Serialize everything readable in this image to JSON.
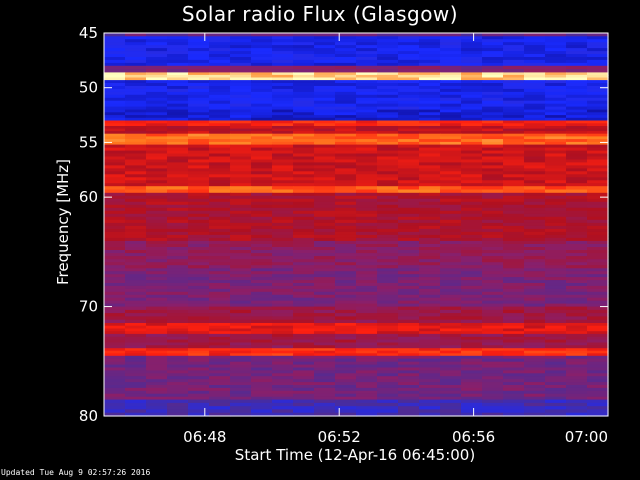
{
  "chart_data": {
    "type": "heatmap",
    "title": "Solar radio Flux (Glasgow)",
    "ylabel": "Frequency [MHz]",
    "xlabel": "Start Time (12-Apr-16 06:45:00)",
    "y_ticks": [
      "45",
      "50",
      "55",
      "60",
      "70",
      "80"
    ],
    "x_ticks": [
      "06:48",
      "06:52",
      "06:56",
      "07:00"
    ],
    "ylim": [
      45,
      80
    ],
    "xlim_minutes": [
      0,
      15
    ],
    "colormap": [
      "#1010a0",
      "#1a2bff",
      "#4a2c9a",
      "#8a1f6a",
      "#b01020",
      "#ff2010",
      "#ff8020",
      "#ffffc0"
    ],
    "bands": [
      {
        "from": 45,
        "to": 45.3,
        "level": 0.35
      },
      {
        "from": 45.3,
        "to": 48.0,
        "level": 0.12
      },
      {
        "from": 48.0,
        "to": 48.6,
        "level": 0.4
      },
      {
        "from": 48.6,
        "to": 49.3,
        "level": 0.95
      },
      {
        "from": 49.3,
        "to": 52.0,
        "level": 0.12
      },
      {
        "from": 52.0,
        "to": 53.0,
        "level": 0.08
      },
      {
        "from": 53.0,
        "to": 53.5,
        "level": 0.7
      },
      {
        "from": 53.5,
        "to": 54.2,
        "level": 0.6
      },
      {
        "from": 54.2,
        "to": 55.2,
        "level": 0.82
      },
      {
        "from": 55.2,
        "to": 59.0,
        "level": 0.62
      },
      {
        "from": 59.0,
        "to": 59.6,
        "level": 0.8
      },
      {
        "from": 59.6,
        "to": 64.0,
        "level": 0.55
      },
      {
        "from": 64.0,
        "to": 66.5,
        "level": 0.45
      },
      {
        "from": 66.5,
        "to": 70.0,
        "level": 0.4
      },
      {
        "from": 70.0,
        "to": 71.5,
        "level": 0.5
      },
      {
        "from": 71.5,
        "to": 72.5,
        "level": 0.66
      },
      {
        "from": 72.5,
        "to": 73.8,
        "level": 0.5
      },
      {
        "from": 73.8,
        "to": 74.5,
        "level": 0.72
      },
      {
        "from": 74.5,
        "to": 78.5,
        "level": 0.38
      },
      {
        "from": 78.5,
        "to": 80.0,
        "level": 0.25
      }
    ]
  },
  "footer": "Updated Tue Aug  9 02:57:26 2016"
}
